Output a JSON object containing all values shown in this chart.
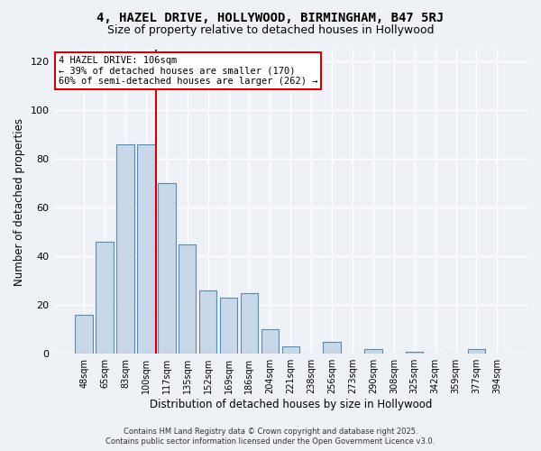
{
  "title": "4, HAZEL DRIVE, HOLLYWOOD, BIRMINGHAM, B47 5RJ",
  "subtitle": "Size of property relative to detached houses in Hollywood",
  "xlabel": "Distribution of detached houses by size in Hollywood",
  "ylabel": "Number of detached properties",
  "bar_color": "#c8d8e8",
  "bar_edge_color": "#5a8ab0",
  "background_color": "#eef2f7",
  "grid_color": "#ffffff",
  "categories": [
    "48sqm",
    "65sqm",
    "83sqm",
    "100sqm",
    "117sqm",
    "135sqm",
    "152sqm",
    "169sqm",
    "186sqm",
    "204sqm",
    "221sqm",
    "238sqm",
    "256sqm",
    "273sqm",
    "290sqm",
    "308sqm",
    "325sqm",
    "342sqm",
    "359sqm",
    "377sqm",
    "394sqm"
  ],
  "values": [
    16,
    46,
    86,
    86,
    70,
    45,
    26,
    23,
    25,
    10,
    3,
    0,
    5,
    0,
    2,
    0,
    1,
    0,
    0,
    2,
    0
  ],
  "ylim": [
    0,
    125
  ],
  "yticks": [
    0,
    20,
    40,
    60,
    80,
    100,
    120
  ],
  "vline_x": 3.5,
  "vline_color": "#cc0000",
  "annotation_title": "4 HAZEL DRIVE: 106sqm",
  "annotation_line1": "← 39% of detached houses are smaller (170)",
  "annotation_line2": "60% of semi-detached houses are larger (262) →",
  "annotation_box_edge": "#cc0000",
  "annotation_box_face": "#ffffff",
  "footer1": "Contains HM Land Registry data © Crown copyright and database right 2025.",
  "footer2": "Contains public sector information licensed under the Open Government Licence v3.0.",
  "title_fontsize": 10,
  "subtitle_fontsize": 9,
  "xlabel_fontsize": 8.5,
  "ylabel_fontsize": 8.5
}
